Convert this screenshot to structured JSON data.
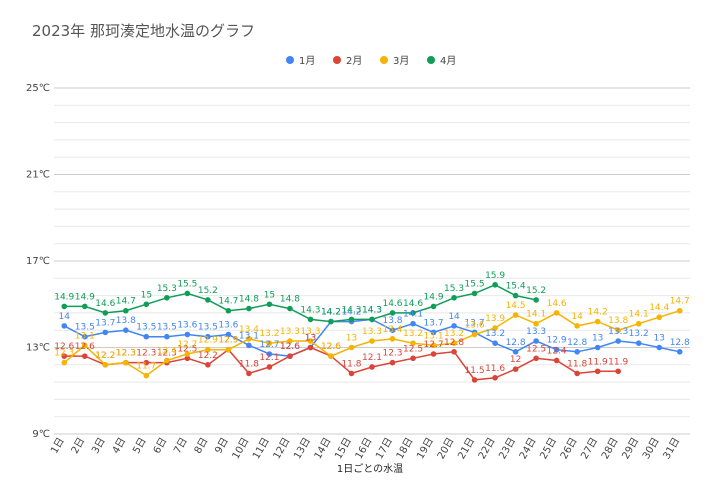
{
  "chart_data": {
    "type": "line",
    "title": "2023年 那珂湊定地水温のグラフ",
    "xlabel": "1日ごとの水温",
    "ylabel": "",
    "ylim": [
      9,
      25
    ],
    "yticks": [
      "9℃",
      "13℃",
      "17℃",
      "21℃",
      "25℃"
    ],
    "ytick_values": [
      9,
      13,
      17,
      21,
      25
    ],
    "categories": [
      "1日",
      "2日",
      "3日",
      "4日",
      "5日",
      "6日",
      "7日",
      "8日",
      "9日",
      "10日",
      "11日",
      "12日",
      "13日",
      "14日",
      "15日",
      "16日",
      "17日",
      "18日",
      "19日",
      "20日",
      "21日",
      "22日",
      "23日",
      "24日",
      "25日",
      "26日",
      "27日",
      "28日",
      "29日",
      "30日",
      "31日"
    ],
    "legend_position": "top",
    "grid": true,
    "series": [
      {
        "name": "1月",
        "color": "#4285F4",
        "values": [
          14,
          13.5,
          13.7,
          13.8,
          13.5,
          13.5,
          13.6,
          13.5,
          13.6,
          13.1,
          12.7,
          12.6,
          13,
          14.2,
          14.2,
          14.3,
          13.8,
          14.1,
          13.7,
          14,
          13.7,
          13.2,
          12.8,
          13.3,
          12.9,
          12.8,
          13,
          13.3,
          13.2,
          13,
          12.8
        ]
      },
      {
        "name": "2月",
        "color": "#DB4437",
        "values": [
          12.6,
          12.6,
          12.2,
          12.3,
          12.3,
          12.3,
          12.5,
          12.2,
          12.9,
          11.8,
          12.1,
          12.6,
          13,
          12.6,
          11.8,
          12.1,
          12.3,
          12.5,
          12.7,
          12.8,
          11.5,
          11.6,
          12,
          12.5,
          12.4,
          11.8,
          11.9,
          11.9,
          null,
          null,
          null
        ]
      },
      {
        "name": "3月",
        "color": "#F4B400",
        "values": [
          12.3,
          13.1,
          12.2,
          12.3,
          11.7,
          12.4,
          12.7,
          12.9,
          12.9,
          13.4,
          13.2,
          13.3,
          13.3,
          12.6,
          13,
          13.3,
          13.4,
          13.2,
          13.1,
          13.2,
          13.6,
          13.9,
          14.5,
          14.1,
          14.6,
          14,
          14.2,
          13.8,
          14.1,
          14.4,
          14.7
        ]
      },
      {
        "name": "4月",
        "color": "#0F9D58",
        "values": [
          14.9,
          14.9,
          14.6,
          14.7,
          15,
          15.3,
          15.5,
          15.2,
          14.7,
          14.8,
          15,
          14.8,
          14.3,
          14.2,
          14.3,
          14.3,
          14.6,
          14.6,
          14.9,
          15.3,
          15.5,
          15.9,
          15.4,
          15.2,
          null,
          null,
          null,
          null,
          null,
          null,
          null
        ]
      }
    ]
  }
}
